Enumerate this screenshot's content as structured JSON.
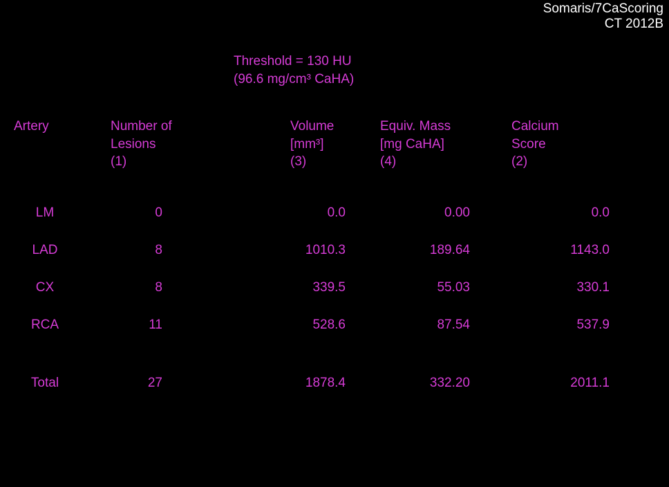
{
  "software": {
    "name": "Somaris/7CaScoring",
    "version": "CT 2012B"
  },
  "threshold": {
    "line1": "Threshold = 130 HU",
    "line2": "(96.6 mg/cm³ CaHA)"
  },
  "headers": {
    "artery": "Artery",
    "lesions_l1": "Number of",
    "lesions_l2": "Lesions",
    "lesions_l3": " (1)",
    "volume_l1": "Volume",
    "volume_l2": "[mm³]",
    "volume_l3": "(3)",
    "mass_l1": "Equiv. Mass",
    "mass_l2": "[mg CaHA]",
    "mass_l3": "(4)",
    "score_l1": "Calcium",
    "score_l2": "Score",
    "score_l3": "(2)"
  },
  "rows": [
    {
      "artery": "LM",
      "lesions": "0",
      "volume": "0.0",
      "mass": "0.00",
      "score": "0.0"
    },
    {
      "artery": "LAD",
      "lesions": "8",
      "volume": "1010.3",
      "mass": "189.64",
      "score": "1143.0"
    },
    {
      "artery": "CX",
      "lesions": "8",
      "volume": "339.5",
      "mass": "55.03",
      "score": "330.1"
    },
    {
      "artery": "RCA",
      "lesions": "11",
      "volume": "528.6",
      "mass": "87.54",
      "score": "537.9"
    }
  ],
  "total": {
    "artery": "Total",
    "lesions": "27",
    "volume": "1878.4",
    "mass": "332.20",
    "score": "2011.1"
  },
  "colors": {
    "background": "#000000",
    "annotation_white": "#ffffff",
    "data_magenta": "#d63cd6"
  }
}
